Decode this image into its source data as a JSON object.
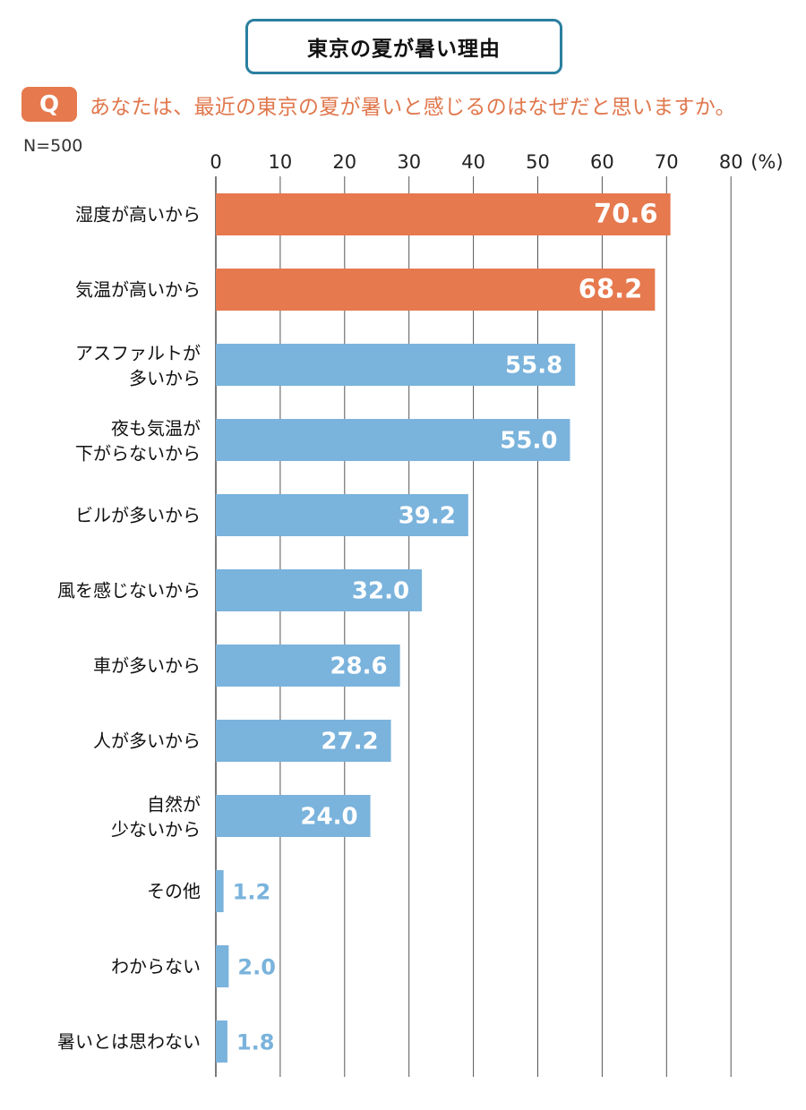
{
  "header": {
    "title": "東京の夏が暑い理由",
    "q_badge": "Q",
    "question": "あなたは、最近の東京の夏が暑いと感じるのはなぜだと思いますか。",
    "sample_size": "N=500"
  },
  "colors": {
    "highlight": "#e6794e",
    "normal": "#7ab3dc",
    "title_border": "#2a7fa0",
    "value_outside": "#7ab3dc"
  },
  "chart_data": {
    "type": "bar",
    "orientation": "horizontal",
    "title": "東京の夏が暑い理由",
    "subtitle": "あなたは、最近の東京の夏が暑いと感じるのはなぜだと思いますか。",
    "xlabel": "(%)",
    "ylabel": "",
    "xlim": [
      0,
      80
    ],
    "xticks": [
      0,
      10,
      20,
      30,
      40,
      50,
      60,
      70,
      80
    ],
    "xtick_labels": [
      "0",
      "10",
      "20",
      "30",
      "40",
      "50",
      "60",
      "70",
      "80"
    ],
    "unit_label": "(%)",
    "grid": true,
    "legend": "none",
    "categories": [
      [
        "湿度が高いから"
      ],
      [
        "気温が高いから"
      ],
      [
        "アスファルトが",
        "多いから"
      ],
      [
        "夜も気温が",
        "下がらないから"
      ],
      [
        "ビルが多いから"
      ],
      [
        "風を感じないから"
      ],
      [
        "車が多いから"
      ],
      [
        "人が多いから"
      ],
      [
        "自然が",
        "少ないから"
      ],
      [
        "その他"
      ],
      [
        "わからない"
      ],
      [
        "暑いとは思わない"
      ]
    ],
    "values": [
      70.6,
      68.2,
      55.8,
      55.0,
      39.2,
      32.0,
      28.6,
      27.2,
      24.0,
      1.2,
      2.0,
      1.8
    ],
    "value_labels": [
      "70.6",
      "68.2",
      "55.8",
      "55.0",
      "39.2",
      "32.0",
      "28.6",
      "27.2",
      "24.0",
      "1.2",
      "2.0",
      "1.8"
    ],
    "highlighted": [
      true,
      true,
      false,
      false,
      false,
      false,
      false,
      false,
      false,
      false,
      false,
      false
    ]
  }
}
